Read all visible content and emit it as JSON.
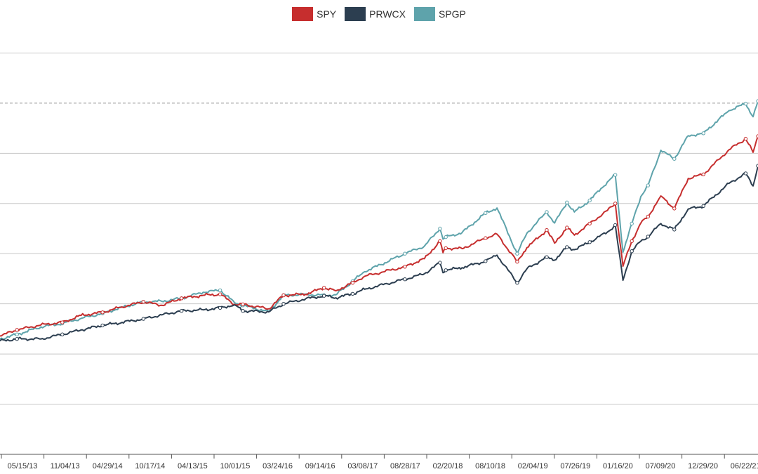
{
  "chart_data": {
    "type": "line",
    "title": "",
    "xlabel": "",
    "ylabel": "",
    "x_ticks": [
      "05/15/13",
      "11/04/13",
      "04/29/14",
      "10/17/14",
      "04/13/15",
      "10/01/15",
      "03/24/16",
      "09/14/16",
      "03/08/17",
      "08/28/17",
      "02/20/18",
      "08/10/18",
      "02/04/19",
      "07/26/19",
      "01/16/20",
      "07/09/20",
      "12/29/20",
      "06/22/21"
    ],
    "x_range": [
      "2012-11-20",
      "2021-10-25"
    ],
    "ylim": [
      0,
      9
    ],
    "yticks": [
      1,
      2,
      3,
      4,
      5,
      6,
      7,
      8
    ],
    "y_ticks_labeled": false,
    "grid": true,
    "reference_line": 7,
    "legend_position": "top-center",
    "series": [
      {
        "name": "SPY",
        "color": "#c62e2e",
        "points": [
          [
            "2012-11-20",
            2.36
          ],
          [
            "2013-02-01",
            2.48
          ],
          [
            "2013-05-15",
            2.58
          ],
          [
            "2013-08-15",
            2.63
          ],
          [
            "2013-11-04",
            2.77
          ],
          [
            "2014-02-04",
            2.83
          ],
          [
            "2014-04-29",
            2.94
          ],
          [
            "2014-07-30",
            3.04
          ],
          [
            "2014-10-17",
            2.97
          ],
          [
            "2015-01-10",
            3.11
          ],
          [
            "2015-04-13",
            3.17
          ],
          [
            "2015-06-25",
            3.19
          ],
          [
            "2015-08-25",
            2.99
          ],
          [
            "2015-10-01",
            2.99
          ],
          [
            "2016-01-20",
            2.9
          ],
          [
            "2016-03-24",
            3.17
          ],
          [
            "2016-06-27",
            3.19
          ],
          [
            "2016-09-14",
            3.32
          ],
          [
            "2016-11-04",
            3.26
          ],
          [
            "2017-01-15",
            3.42
          ],
          [
            "2017-03-08",
            3.55
          ],
          [
            "2017-08-28",
            3.74
          ],
          [
            "2017-11-20",
            3.9
          ],
          [
            "2018-01-26",
            4.25
          ],
          [
            "2018-02-08",
            4.02
          ],
          [
            "2018-02-20",
            4.11
          ],
          [
            "2018-05-01",
            4.1
          ],
          [
            "2018-08-10",
            4.31
          ],
          [
            "2018-09-28",
            4.39
          ],
          [
            "2018-12-24",
            3.84
          ],
          [
            "2019-02-04",
            4.12
          ],
          [
            "2019-04-30",
            4.47
          ],
          [
            "2019-06-03",
            4.21
          ],
          [
            "2019-07-26",
            4.52
          ],
          [
            "2019-08-27",
            4.37
          ],
          [
            "2019-11-01",
            4.6
          ],
          [
            "2020-01-16",
            4.86
          ],
          [
            "2020-02-19",
            5.0
          ],
          [
            "2020-03-23",
            3.75
          ],
          [
            "2020-04-30",
            4.25
          ],
          [
            "2020-06-08",
            4.61
          ],
          [
            "2020-07-09",
            4.74
          ],
          [
            "2020-09-02",
            5.15
          ],
          [
            "2020-10-30",
            4.9
          ],
          [
            "2020-12-29",
            5.5
          ],
          [
            "2021-03-04",
            5.58
          ],
          [
            "2021-06-22",
            6.07
          ],
          [
            "2021-09-02",
            6.29
          ],
          [
            "2021-10-04",
            6.02
          ],
          [
            "2021-10-25",
            6.34
          ]
        ]
      },
      {
        "name": "PRWCX",
        "color": "#2c3e50",
        "points": [
          [
            "2012-11-20",
            2.26
          ],
          [
            "2013-02-01",
            2.3
          ],
          [
            "2013-05-15",
            2.3
          ],
          [
            "2013-08-15",
            2.39
          ],
          [
            "2013-11-04",
            2.48
          ],
          [
            "2014-02-04",
            2.57
          ],
          [
            "2014-04-29",
            2.63
          ],
          [
            "2014-07-30",
            2.7
          ],
          [
            "2014-10-17",
            2.78
          ],
          [
            "2015-01-10",
            2.86
          ],
          [
            "2015-04-13",
            2.88
          ],
          [
            "2015-06-25",
            2.92
          ],
          [
            "2015-08-25",
            2.98
          ],
          [
            "2015-10-01",
            2.86
          ],
          [
            "2016-01-20",
            2.84
          ],
          [
            "2016-03-24",
            3.0
          ],
          [
            "2016-06-27",
            3.1
          ],
          [
            "2016-09-14",
            3.16
          ],
          [
            "2016-11-04",
            3.12
          ],
          [
            "2017-01-15",
            3.2
          ],
          [
            "2017-03-08",
            3.29
          ],
          [
            "2017-08-28",
            3.49
          ],
          [
            "2017-11-20",
            3.6
          ],
          [
            "2018-01-26",
            3.82
          ],
          [
            "2018-02-08",
            3.62
          ],
          [
            "2018-02-20",
            3.67
          ],
          [
            "2018-05-01",
            3.72
          ],
          [
            "2018-08-10",
            3.85
          ],
          [
            "2018-09-28",
            3.97
          ],
          [
            "2018-12-24",
            3.42
          ],
          [
            "2019-02-04",
            3.7
          ],
          [
            "2019-04-30",
            3.93
          ],
          [
            "2019-06-03",
            3.87
          ],
          [
            "2019-07-26",
            4.13
          ],
          [
            "2019-08-27",
            4.08
          ],
          [
            "2019-11-01",
            4.23
          ],
          [
            "2020-01-16",
            4.43
          ],
          [
            "2020-02-19",
            4.57
          ],
          [
            "2020-03-23",
            3.47
          ],
          [
            "2020-04-30",
            4.05
          ],
          [
            "2020-06-08",
            4.25
          ],
          [
            "2020-07-09",
            4.34
          ],
          [
            "2020-09-02",
            4.6
          ],
          [
            "2020-10-30",
            4.48
          ],
          [
            "2020-12-29",
            4.89
          ],
          [
            "2021-03-04",
            4.95
          ],
          [
            "2021-06-22",
            5.4
          ],
          [
            "2021-09-02",
            5.6
          ],
          [
            "2021-10-04",
            5.35
          ],
          [
            "2021-10-25",
            5.75
          ]
        ]
      },
      {
        "name": "SPGP",
        "color": "#5ea3ab",
        "points": [
          [
            "2012-11-20",
            2.3
          ],
          [
            "2013-02-01",
            2.39
          ],
          [
            "2013-05-15",
            2.54
          ],
          [
            "2013-08-15",
            2.61
          ],
          [
            "2013-11-04",
            2.71
          ],
          [
            "2014-02-04",
            2.81
          ],
          [
            "2014-04-29",
            2.93
          ],
          [
            "2014-07-30",
            3.04
          ],
          [
            "2014-10-17",
            3.05
          ],
          [
            "2015-01-10",
            3.11
          ],
          [
            "2015-04-13",
            3.23
          ],
          [
            "2015-06-25",
            3.27
          ],
          [
            "2015-08-25",
            3.03
          ],
          [
            "2015-10-01",
            2.97
          ],
          [
            "2016-01-20",
            2.84
          ],
          [
            "2016-03-24",
            3.17
          ],
          [
            "2016-06-27",
            3.19
          ],
          [
            "2016-09-14",
            3.17
          ],
          [
            "2016-11-04",
            3.18
          ],
          [
            "2017-01-15",
            3.45
          ],
          [
            "2017-03-08",
            3.64
          ],
          [
            "2017-08-28",
            4.0
          ],
          [
            "2017-11-20",
            4.15
          ],
          [
            "2018-01-26",
            4.5
          ],
          [
            "2018-02-08",
            4.29
          ],
          [
            "2018-02-20",
            4.33
          ],
          [
            "2018-05-01",
            4.42
          ],
          [
            "2018-08-10",
            4.81
          ],
          [
            "2018-09-28",
            4.91
          ],
          [
            "2018-12-24",
            4.0
          ],
          [
            "2019-02-04",
            4.41
          ],
          [
            "2019-04-30",
            4.83
          ],
          [
            "2019-06-03",
            4.61
          ],
          [
            "2019-07-26",
            5.02
          ],
          [
            "2019-08-27",
            4.83
          ],
          [
            "2019-11-01",
            5.06
          ],
          [
            "2020-01-16",
            5.43
          ],
          [
            "2020-02-19",
            5.57
          ],
          [
            "2020-03-23",
            4.03
          ],
          [
            "2020-04-30",
            4.6
          ],
          [
            "2020-06-08",
            5.14
          ],
          [
            "2020-07-09",
            5.36
          ],
          [
            "2020-09-02",
            6.06
          ],
          [
            "2020-10-30",
            5.89
          ],
          [
            "2020-12-29",
            6.35
          ],
          [
            "2021-03-04",
            6.4
          ],
          [
            "2021-06-22",
            6.85
          ],
          [
            "2021-09-02",
            6.99
          ],
          [
            "2021-10-04",
            6.73
          ],
          [
            "2021-10-25",
            7.04
          ]
        ]
      }
    ]
  }
}
